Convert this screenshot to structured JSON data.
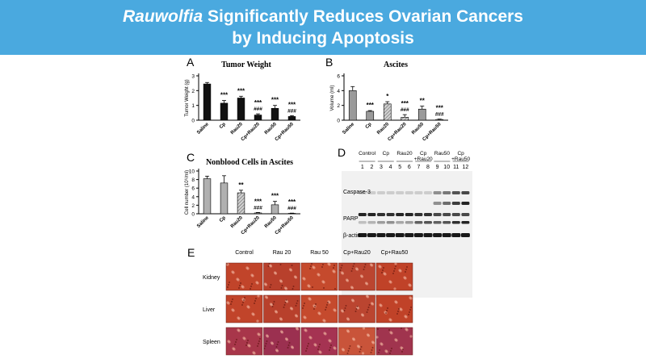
{
  "header": {
    "title_italic": "Rauwolfia",
    "title_rest": " Significantly Reduces Ovarian Cancers",
    "title_line2": "by Inducing Apoptosis",
    "background_color": "#4aa9df"
  },
  "panels": {
    "a_letter": "A",
    "b_letter": "B",
    "c_letter": "C",
    "d_letter": "D",
    "e_letter": "E"
  },
  "chart_data": [
    {
      "type": "bar",
      "title": "Tumor Weight",
      "ylabel": "Tumor Weight (g)",
      "ylim": [
        0,
        3
      ],
      "yticks": [
        "0",
        "1",
        "2",
        "3"
      ],
      "categories": [
        "Saline",
        "Cp",
        "Rau20",
        "Cp+Rau20",
        "Rau50",
        "Cp+Rau50"
      ],
      "values": [
        2.45,
        1.15,
        1.5,
        0.35,
        0.8,
        0.25
      ],
      "errors": [
        0.1,
        0.18,
        0.12,
        0.08,
        0.2,
        0.06
      ],
      "annotations": [
        "",
        "***",
        "***",
        "***\n###",
        "***",
        "***\n###"
      ],
      "bar_color": "#111111"
    },
    {
      "type": "bar",
      "title": "Ascites",
      "ylabel": "Volume (ml)",
      "ylim": [
        0,
        6
      ],
      "yticks": [
        "0",
        "2",
        "4",
        "6"
      ],
      "categories": [
        "Saline",
        "Cp",
        "Rau20",
        "Cp+Rau20",
        "Rau50",
        "Cp+Rau50"
      ],
      "values": [
        4.0,
        1.2,
        2.2,
        0.4,
        1.5,
        0.1
      ],
      "errors": [
        0.55,
        0.1,
        0.3,
        0.35,
        0.4,
        0.05
      ],
      "annotations": [
        "",
        "***",
        "*",
        "***\n###",
        "**",
        "***\n###"
      ],
      "bar_color": "#9a9a9a"
    },
    {
      "type": "bar",
      "title": "Nonblood Cells in Ascites",
      "ylabel": "Cell number (10⁶/ml)",
      "ylim": [
        0,
        10
      ],
      "yticks": [
        "0",
        "2",
        "4",
        "6",
        "8",
        "10"
      ],
      "categories": [
        "Saline",
        "Cp",
        "Rau20",
        "Cp+Rau20",
        "Rau50",
        "Cp+Rau50"
      ],
      "values": [
        8.2,
        7.2,
        4.9,
        0.2,
        2.1,
        0.1
      ],
      "errors": [
        0.6,
        1.7,
        0.6,
        0.1,
        0.8,
        0.05
      ],
      "annotations": [
        "",
        "",
        "**",
        "***\n###",
        "***",
        "***\n###"
      ],
      "bar_color": "#b0b0b0"
    }
  ],
  "western_blot": {
    "groups": [
      "Control",
      "Cp",
      "Rau20",
      "Cp\n+Rau20",
      "Rau50",
      "Cp\n+Rau50"
    ],
    "lanes": [
      "1",
      "2",
      "3",
      "4",
      "5",
      "6",
      "7",
      "8",
      "9",
      "10",
      "11",
      "12"
    ],
    "band_labels": [
      "Caspase-3",
      "PARP",
      "β-actin"
    ]
  },
  "histology": {
    "columns": [
      "Control",
      "Rau 20",
      "Rau 50",
      "Cp+Rau20",
      "Cp+Rau50"
    ],
    "rows": [
      "Kidney",
      "Liver",
      "Spleen"
    ]
  }
}
